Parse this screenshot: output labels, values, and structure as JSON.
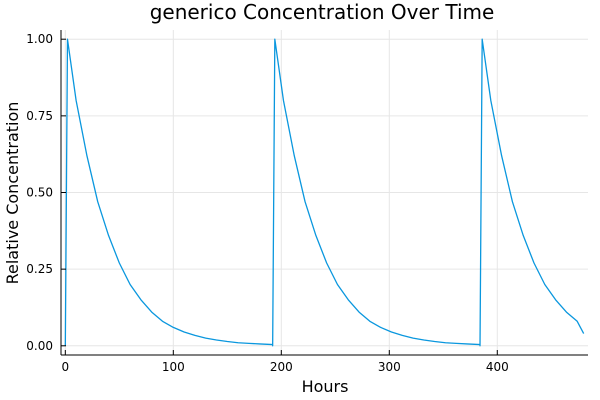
{
  "chart_data": {
    "type": "line",
    "title": "generico Concentration Over Time",
    "xlabel": "Hours",
    "ylabel": "Relative Concentration",
    "xlim": [
      -4,
      484
    ],
    "ylim": [
      -0.03,
      1.03
    ],
    "xticks": [
      0,
      100,
      200,
      300,
      400
    ],
    "yticks": [
      0.0,
      0.25,
      0.5,
      0.75,
      1.0
    ],
    "xtick_labels": [
      "0",
      "100",
      "200",
      "300",
      "400"
    ],
    "ytick_labels": [
      "0.00",
      "0.25",
      "0.50",
      "0.75",
      "1.00"
    ],
    "grid": true,
    "legend": "none",
    "series": [
      {
        "color": "#0a97de",
        "x": [
          0,
          2,
          10,
          20,
          30,
          40,
          50,
          60,
          70,
          80,
          90,
          100,
          110,
          120,
          130,
          140,
          150,
          160,
          170,
          180,
          192,
          192,
          194,
          202,
          212,
          222,
          232,
          242,
          252,
          262,
          272,
          282,
          292,
          302,
          312,
          322,
          332,
          342,
          352,
          362,
          372,
          384,
          384,
          386,
          394,
          404,
          414,
          424,
          434,
          444,
          454,
          464,
          474,
          480
        ],
        "y": [
          0.0,
          1.0,
          0.8,
          0.62,
          0.47,
          0.36,
          0.27,
          0.2,
          0.15,
          0.11,
          0.08,
          0.06,
          0.045,
          0.034,
          0.025,
          0.019,
          0.014,
          0.01,
          0.008,
          0.006,
          0.004,
          0.0,
          1.0,
          0.8,
          0.62,
          0.47,
          0.36,
          0.27,
          0.2,
          0.15,
          0.11,
          0.08,
          0.06,
          0.045,
          0.034,
          0.025,
          0.019,
          0.014,
          0.01,
          0.008,
          0.006,
          0.004,
          0.0,
          1.0,
          0.8,
          0.62,
          0.47,
          0.36,
          0.27,
          0.2,
          0.15,
          0.11,
          0.08,
          0.04
        ]
      }
    ]
  }
}
